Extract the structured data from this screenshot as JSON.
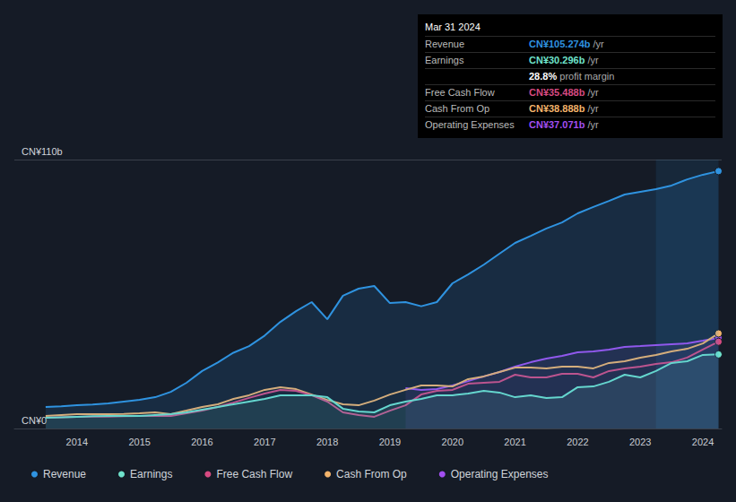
{
  "chart_data": {
    "type": "line",
    "x": [
      2013.5,
      2013.75,
      2014,
      2014.25,
      2014.5,
      2014.75,
      2015,
      2015.25,
      2015.5,
      2015.75,
      2016,
      2016.25,
      2016.5,
      2016.75,
      2017,
      2017.25,
      2017.5,
      2017.75,
      2018,
      2018.25,
      2018.5,
      2018.75,
      2019,
      2019.25,
      2019.5,
      2019.75,
      2020,
      2020.25,
      2020.5,
      2020.75,
      2021,
      2021.25,
      2021.5,
      2021.75,
      2022,
      2022.25,
      2022.5,
      2022.75,
      2023,
      2023.25,
      2023.5,
      2023.75,
      2024,
      2024.25
    ],
    "series": [
      {
        "name": "Revenue",
        "color": "#2f93e0",
        "values": [
          8.8,
          9.1,
          9.5,
          9.8,
          10.3,
          11.0,
          11.7,
          12.8,
          15.0,
          18.7,
          23.5,
          27.0,
          31.0,
          33.7,
          38.0,
          43.6,
          48.0,
          51.7,
          44.7,
          54.3,
          57.2,
          58.3,
          51.3,
          51.7,
          50.0,
          51.7,
          59.4,
          63.0,
          67.0,
          71.5,
          75.9,
          78.8,
          81.8,
          84.3,
          88.0,
          90.6,
          93.1,
          95.7,
          96.8,
          97.9,
          99.4,
          101.9,
          103.8,
          105.274
        ]
      },
      {
        "name": "Earnings",
        "color": "#6fe3cc",
        "values": [
          4.4,
          4.6,
          4.8,
          5.0,
          5.1,
          5.1,
          5.1,
          5.5,
          5.9,
          6.6,
          7.7,
          8.8,
          9.9,
          11.0,
          12.1,
          13.6,
          13.6,
          13.6,
          12.8,
          8.1,
          7.0,
          6.6,
          9.5,
          11.0,
          12.1,
          13.6,
          13.6,
          14.3,
          15.4,
          14.7,
          12.8,
          13.6,
          12.5,
          12.8,
          16.9,
          17.2,
          19.1,
          22.0,
          20.9,
          23.5,
          26.8,
          27.5,
          30.1,
          30.296
        ]
      },
      {
        "name": "Free Cash Flow",
        "color": "#d64a81",
        "values": [
          4.4,
          4.6,
          4.8,
          4.9,
          4.9,
          5.0,
          5.1,
          5.1,
          5.1,
          6.2,
          7.3,
          8.8,
          10.6,
          12.5,
          14.3,
          15.8,
          15.4,
          13.6,
          11.0,
          6.6,
          5.5,
          4.8,
          7.3,
          9.5,
          13.9,
          15.4,
          15.8,
          18.3,
          18.7,
          19.1,
          22.0,
          20.9,
          20.9,
          22.4,
          22.4,
          20.9,
          23.5,
          24.6,
          25.3,
          26.4,
          27.1,
          29.0,
          32.3,
          35.488
        ]
      },
      {
        "name": "Cash From Op",
        "color": "#f2b36b",
        "values": [
          5.1,
          5.5,
          5.9,
          5.9,
          5.9,
          6.0,
          6.2,
          6.6,
          5.9,
          7.3,
          8.8,
          9.9,
          12.1,
          13.6,
          15.8,
          16.9,
          16.1,
          13.9,
          11.7,
          9.9,
          9.5,
          11.4,
          13.9,
          15.8,
          17.6,
          17.6,
          17.2,
          20.2,
          21.3,
          23.1,
          24.9,
          24.9,
          24.6,
          25.3,
          25.3,
          24.6,
          26.8,
          27.5,
          29.0,
          30.1,
          31.5,
          32.6,
          34.8,
          38.888
        ]
      },
      {
        "name": "Operating Expenses",
        "color": "#a24ff0",
        "values": [
          null,
          null,
          null,
          null,
          null,
          null,
          null,
          null,
          null,
          null,
          null,
          null,
          null,
          null,
          null,
          null,
          null,
          null,
          null,
          null,
          null,
          null,
          null,
          16.5,
          15.8,
          16.1,
          17.6,
          19.4,
          21.3,
          23.1,
          25.3,
          27.1,
          28.6,
          29.7,
          31.2,
          31.5,
          32.3,
          33.4,
          33.7,
          34.1,
          34.5,
          34.8,
          35.9,
          37.071
        ]
      }
    ],
    "xlim": [
      2013,
      2024.3
    ],
    "xticks": [
      2014,
      2015,
      2016,
      2017,
      2018,
      2019,
      2020,
      2021,
      2022,
      2023,
      2024
    ],
    "ylim": [
      0,
      110
    ],
    "yticks": [
      {
        "value": 0,
        "label": "CN¥0"
      },
      {
        "value": 110,
        "label": "CN¥110b"
      }
    ],
    "highlight_range": [
      2023.25,
      2024.25
    ],
    "grid": true,
    "legend": "bottom",
    "annotations": {
      "title": "Mar 31 2024",
      "rows": [
        {
          "label": "Revenue",
          "value": "CN¥105.274b",
          "suffix": " /yr",
          "color": "#2f93e0"
        },
        {
          "label": "Earnings",
          "value": "CN¥30.296b",
          "suffix": " /yr",
          "color": "#6fe3cc"
        },
        {
          "value": "28.8%",
          "suffix": " profit margin",
          "color": "#ffffff"
        },
        {
          "label": "Free Cash Flow",
          "value": "CN¥35.488b",
          "suffix": " /yr",
          "color": "#d64a81"
        },
        {
          "label": "Cash From Op",
          "value": "CN¥38.888b",
          "suffix": " /yr",
          "color": "#f2b36b"
        },
        {
          "label": "Operating Expenses",
          "value": "CN¥37.071b",
          "suffix": " /yr",
          "color": "#a24ff0"
        }
      ]
    }
  }
}
